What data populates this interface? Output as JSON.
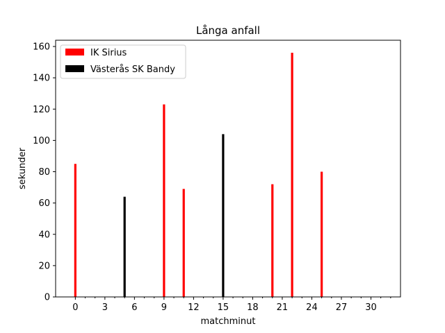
{
  "chart_data": {
    "type": "bar",
    "title": "Långa anfall",
    "xlabel": "matchminut",
    "ylabel": "sekunder",
    "xlim": [
      -2,
      33
    ],
    "ylim": [
      0,
      164
    ],
    "x_major_ticks": [
      0,
      3,
      6,
      9,
      12,
      15,
      18,
      21,
      24,
      27,
      30
    ],
    "x_minor_ticks": [
      1,
      2,
      4,
      5,
      7,
      8,
      10,
      11,
      13,
      14,
      16,
      17,
      19,
      20,
      22,
      23,
      25,
      26,
      28,
      29,
      31,
      32
    ],
    "y_ticks": [
      0,
      20,
      40,
      60,
      80,
      100,
      120,
      140,
      160
    ],
    "grid": false,
    "legend_position": "top-left",
    "series": [
      {
        "name": "IK Sirius",
        "color": "#ff0000",
        "points": [
          {
            "x": 0,
            "y": 85
          },
          {
            "x": 9,
            "y": 123
          },
          {
            "x": 11,
            "y": 69
          },
          {
            "x": 20,
            "y": 72
          },
          {
            "x": 22,
            "y": 156
          },
          {
            "x": 25,
            "y": 80
          }
        ]
      },
      {
        "name": "Västerås SK Bandy",
        "color": "#000000",
        "points": [
          {
            "x": 5,
            "y": 64
          },
          {
            "x": 15,
            "y": 104
          }
        ]
      }
    ]
  }
}
